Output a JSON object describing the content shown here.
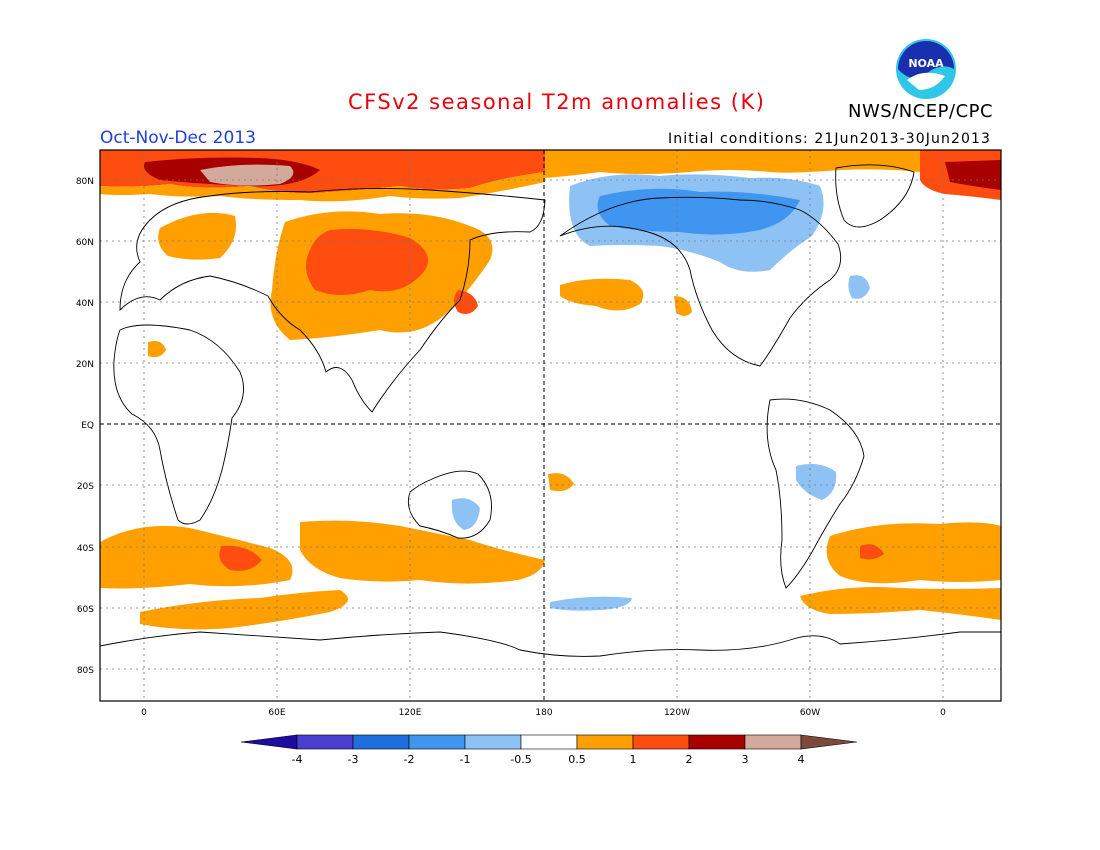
{
  "header": {
    "title": "CFSv2 seasonal T2m anomalies (K)",
    "agency": "NWS/NCEP/CPC",
    "season": "Oct-Nov-Dec 2013",
    "initial_conditions": "Initial conditions: 21Jun2013-30Jun2013",
    "logo_text": "NOAA"
  },
  "map": {
    "lat_labels": [
      "80N",
      "60N",
      "40N",
      "20N",
      "EQ",
      "20S",
      "40S",
      "60S",
      "80S"
    ],
    "lon_labels": [
      "0",
      "60E",
      "120E",
      "180",
      "120W",
      "60W",
      "0"
    ],
    "colors": {
      "ocean_bg": "#ffffff",
      "coast": "#000000",
      "grid": "#666666"
    }
  },
  "legend": {
    "tick_labels": [
      "-4",
      "-3",
      "-2",
      "-1",
      "-0.5",
      "0.5",
      "1",
      "2",
      "3",
      "4"
    ],
    "colors": [
      "#1e0c9e",
      "#4b3dd0",
      "#1f6ee0",
      "#3f95ef",
      "#8ec2f5",
      "#ffffff",
      "#ffa000",
      "#ff4d10",
      "#a80000",
      "#d2a99b",
      "#7b4a3a"
    ]
  },
  "anomaly_colors": {
    "positive_05": "#ffa000",
    "positive_1": "#ff4d10",
    "positive_2": "#a80000",
    "positive_3": "#d2a99b",
    "negative_05": "#8ec2f5",
    "negative_1": "#3f95ef",
    "negative_2": "#1f6ee0"
  }
}
